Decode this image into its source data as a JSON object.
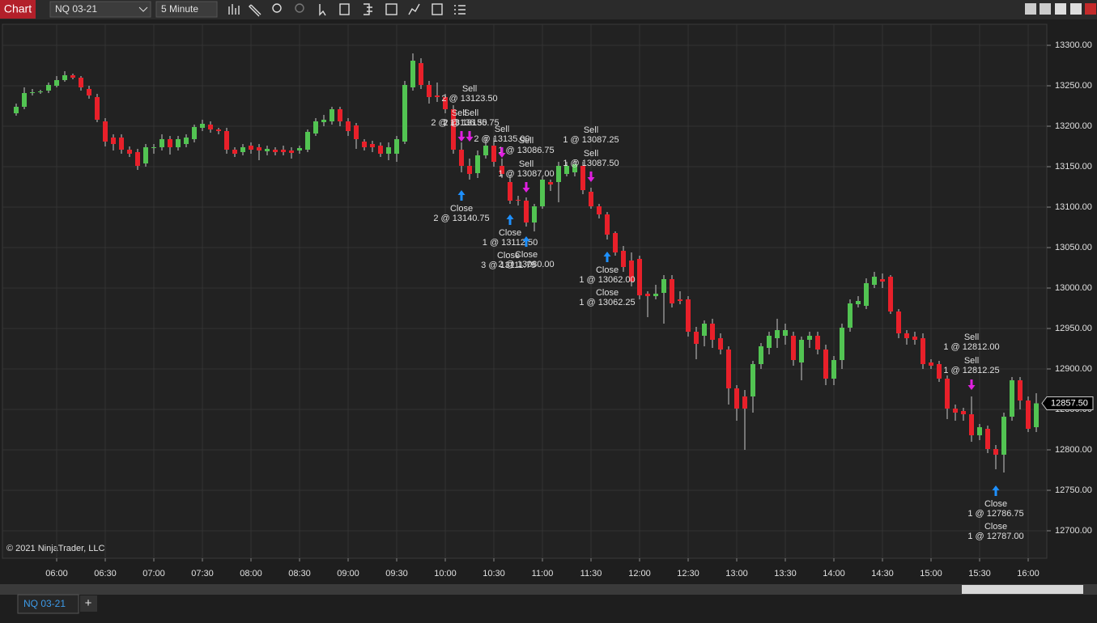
{
  "toolbar": {
    "app_label": "Chart",
    "instrument": "NQ 03-21",
    "interval": "5 Minute"
  },
  "tabs": {
    "active": "NQ 03-21",
    "add": "+"
  },
  "chart_data": {
    "type": "candlestick",
    "copyright": "© 2021 NinjaTrader, LLC",
    "x": [
      "05:35",
      "05:40",
      "05:45",
      "05:50",
      "05:55",
      "06:00",
      "06:05",
      "06:10",
      "06:15",
      "06:20",
      "06:25",
      "06:30",
      "06:35",
      "06:40",
      "06:45",
      "06:50",
      "06:55",
      "07:00",
      "07:05",
      "07:10",
      "07:15",
      "07:20",
      "07:25",
      "07:30",
      "07:35",
      "07:40",
      "07:45",
      "07:50",
      "07:55",
      "08:00",
      "08:05",
      "08:10",
      "08:15",
      "08:20",
      "08:25",
      "08:30",
      "08:35",
      "08:40",
      "08:45",
      "08:50",
      "08:55",
      "09:00",
      "09:05",
      "09:10",
      "09:15",
      "09:20",
      "09:25",
      "09:30",
      "09:35",
      "09:40",
      "09:45",
      "09:50",
      "09:55",
      "10:00",
      "10:05",
      "10:10",
      "10:15",
      "10:20",
      "10:25",
      "10:30",
      "10:35",
      "10:40",
      "10:45",
      "10:50",
      "10:55",
      "11:00",
      "11:05",
      "11:10",
      "11:15",
      "11:20",
      "11:25",
      "11:30",
      "11:35",
      "11:40",
      "11:45",
      "11:50",
      "11:55",
      "12:00",
      "12:05",
      "12:10",
      "12:15",
      "12:20",
      "12:25",
      "12:30",
      "12:35",
      "12:40",
      "12:45",
      "12:50",
      "12:55",
      "13:00",
      "13:05",
      "13:10",
      "13:15",
      "13:20",
      "13:25",
      "13:30",
      "13:35",
      "13:40",
      "13:45",
      "13:50",
      "13:55",
      "14:00",
      "14:05",
      "14:10",
      "14:15",
      "14:20",
      "14:25",
      "14:30",
      "14:35",
      "14:40",
      "14:45",
      "14:50",
      "14:55",
      "15:00",
      "15:05",
      "15:10",
      "15:15",
      "15:20",
      "15:25",
      "15:30",
      "15:35",
      "15:40",
      "15:45",
      "15:50",
      "15:55",
      "16:00",
      "16:05"
    ],
    "open": [
      13216,
      13224,
      13241,
      13242,
      13244,
      13250,
      13257,
      13263,
      13260,
      13246,
      13236,
      13206,
      13186,
      13186,
      13171,
      13168,
      13154,
      13173,
      13174,
      13184,
      13174,
      13178,
      13184,
      13198,
      13202,
      13196,
      13194,
      13171,
      13168,
      13176,
      13174,
      13169,
      13171,
      13171,
      13170,
      13170,
      13171,
      13191,
      13205,
      13206,
      13221,
      13206,
      13201,
      13181,
      13178,
      13176,
      13166,
      13166,
      13181,
      13248,
      13278,
      13251,
      13238,
      13236,
      13221,
      13171,
      13151,
      13142,
      13164,
      13176,
      13151,
      13131,
      13109,
      13108,
      13081,
      13101,
      13131,
      13131,
      13141,
      13143,
      13151,
      13119,
      13101,
      13091,
      13068,
      13046,
      13034,
      13036,
      12993,
      12990,
      12994,
      13011,
      12986,
      12986,
      12946,
      12941,
      12956,
      12938,
      12924,
      12876,
      12866,
      12866,
      12906,
      12926,
      12938,
      12941,
      12941,
      12908,
      12936,
      12941,
      12924,
      12888,
      12911,
      12951,
      12980,
      12978,
      13004,
      13011,
      13014,
      12971,
      12944,
      12940,
      12938,
      12908,
      12906,
      12888,
      12851,
      12848,
      12844,
      12818,
      12826,
      12801,
      12794,
      12841,
      12886,
      12861,
      12828
    ],
    "high": [
      13228,
      13248,
      13246,
      13245,
      13254,
      13262,
      13268,
      13265,
      13262,
      13250,
      13240,
      13210,
      13190,
      13190,
      13175,
      13172,
      13178,
      13178,
      13190,
      13188,
      13188,
      13190,
      13202,
      13208,
      13206,
      13198,
      13198,
      13174,
      13178,
      13180,
      13178,
      13176,
      13174,
      13176,
      13174,
      13176,
      13196,
      13210,
      13214,
      13224,
      13224,
      13210,
      13204,
      13184,
      13182,
      13180,
      13180,
      13188,
      13256,
      13290,
      13284,
      13256,
      13254,
      13240,
      13226,
      13180,
      13160,
      13170,
      13186,
      13186,
      13160,
      13140,
      13114,
      13112,
      13104,
      13138,
      13134,
      13156,
      13156,
      13158,
      13156,
      13124,
      13104,
      13094,
      13070,
      13052,
      13044,
      13040,
      12996,
      13004,
      13016,
      13016,
      12996,
      12990,
      12952,
      12960,
      12962,
      12944,
      12928,
      12880,
      12874,
      12910,
      12932,
      12946,
      12962,
      12956,
      12946,
      12940,
      12946,
      12946,
      12930,
      12916,
      12956,
      12986,
      12990,
      13012,
      13020,
      13018,
      13016,
      12974,
      12948,
      12946,
      12944,
      12912,
      12910,
      12892,
      12856,
      12852,
      12866,
      12832,
      12830,
      12806,
      12846,
      12890,
      12890,
      12866,
      12870
    ],
    "low": [
      13213,
      13221,
      13238,
      13240,
      13241,
      13248,
      13255,
      13258,
      13244,
      13234,
      13205,
      13175,
      13170,
      13166,
      13162,
      13146,
      13150,
      13166,
      13170,
      13165,
      13170,
      13174,
      13180,
      13194,
      13192,
      13190,
      13166,
      13162,
      13164,
      13166,
      13158,
      13164,
      13164,
      13164,
      13160,
      13166,
      13168,
      13188,
      13200,
      13202,
      13200,
      13188,
      13172,
      13170,
      13168,
      13162,
      13158,
      13156,
      13178,
      13244,
      13246,
      13228,
      13230,
      13216,
      13166,
      13143,
      13134,
      13136,
      13160,
      13150,
      13136,
      13104,
      13102,
      13076,
      13070,
      13098,
      13120,
      13106,
      13138,
      13138,
      13116,
      13098,
      13086,
      13060,
      13040,
      13020,
      13002,
      12986,
      12964,
      12986,
      12956,
      12976,
      12980,
      12940,
      12912,
      12928,
      12926,
      12918,
      12856,
      12836,
      12800,
      12846,
      12900,
      12918,
      12926,
      12930,
      12904,
      12886,
      12926,
      12918,
      12880,
      12880,
      12900,
      12946,
      12976,
      12974,
      13000,
      13000,
      12968,
      12938,
      12930,
      12930,
      12900,
      12900,
      12884,
      12838,
      12836,
      12836,
      12810,
      12812,
      12796,
      12776,
      12772,
      12836,
      12850,
      12822,
      12822
    ],
    "close": [
      13224,
      13241,
      13242,
      13243,
      13251,
      13257,
      13263,
      13260,
      13248,
      13238,
      13208,
      13181,
      13178,
      13171,
      13166,
      13151,
      13174,
      13174,
      13184,
      13174,
      13184,
      13186,
      13199,
      13203,
      13196,
      13194,
      13171,
      13166,
      13174,
      13171,
      13170,
      13172,
      13168,
      13168,
      13167,
      13173,
      13193,
      13206,
      13208,
      13221,
      13206,
      13194,
      13184,
      13174,
      13174,
      13166,
      13174,
      13184,
      13251,
      13281,
      13251,
      13236,
      13236,
      13221,
      13171,
      13151,
      13141,
      13164,
      13176,
      13156,
      13141,
      13108,
      13108,
      13081,
      13101,
      13134,
      13128,
      13151,
      13151,
      13153,
      13121,
      13101,
      13091,
      13066,
      13044,
      13026,
      13008,
      12991,
      12990,
      12993,
      13011,
      12981,
      12984,
      12946,
      12931,
      12956,
      12936,
      12924,
      12876,
      12851,
      12851,
      12906,
      12928,
      12941,
      12948,
      12948,
      12911,
      12936,
      12941,
      12924,
      12888,
      12911,
      12951,
      12981,
      12984,
      13006,
      13014,
      13008,
      12971,
      12944,
      12938,
      12936,
      12906,
      12904,
      12888,
      12851,
      12846,
      12844,
      12818,
      12828,
      12801,
      12794,
      12841,
      12886,
      12861,
      12826,
      12857.5
    ],
    "up_color": "#52c452",
    "down_color": "#e8202a",
    "wick_color": "#c8c8c8",
    "ylim": [
      12666,
      13326
    ],
    "yticks": [
      {
        "value": 12700,
        "label": "12700.00"
      },
      {
        "value": 12750,
        "label": "12750.00"
      },
      {
        "value": 12800,
        "label": "12800.00"
      },
      {
        "value": 12850,
        "label": "12850.00"
      },
      {
        "value": 12900,
        "label": "12900.00"
      },
      {
        "value": 12950,
        "label": "12950.00"
      },
      {
        "value": 13000,
        "label": "13000.00"
      },
      {
        "value": 13050,
        "label": "13050.00"
      },
      {
        "value": 13100,
        "label": "13100.00"
      },
      {
        "value": 13150,
        "label": "13150.00"
      },
      {
        "value": 13200,
        "label": "13200.00"
      },
      {
        "value": 13250,
        "label": "13250.00"
      },
      {
        "value": 13300,
        "label": "13300.00"
      }
    ],
    "xticks": [
      "06:00",
      "06:30",
      "07:00",
      "07:30",
      "08:00",
      "08:30",
      "09:00",
      "09:30",
      "10:00",
      "10:30",
      "11:00",
      "11:30",
      "12:00",
      "12:30",
      "13:00",
      "13:30",
      "14:00",
      "14:30",
      "15:00",
      "15:30",
      "16:00"
    ],
    "grid": true,
    "last_price": {
      "value": 12857.5,
      "label": "12857.50"
    },
    "trades": [
      {
        "action": "Sell",
        "text": "2 @ 13123.50"
      },
      {
        "action": "Sell",
        "text": "2 @ 13136.50"
      },
      {
        "action": "Sell",
        "text": "2 @ 13135.75"
      },
      {
        "action": "Sell",
        "text": "2 @ 13135.00"
      },
      {
        "action": "Sell",
        "text": "1 @ 13086.75"
      },
      {
        "action": "Sell",
        "text": "1 @ 13087.00"
      },
      {
        "action": "Sell",
        "text": "1 @ 13087.25"
      },
      {
        "action": "Sell",
        "text": "1 @ 13087.50"
      },
      {
        "action": "Close",
        "text": "2 @ 13140.75"
      },
      {
        "action": "Close",
        "text": "1 @ 13112.50"
      },
      {
        "action": "Close",
        "text": "3 @ 13111.75"
      },
      {
        "action": "Close",
        "text": "2 @ 13080.00"
      },
      {
        "action": "Close",
        "text": "1 @ 13062.00"
      },
      {
        "action": "Close",
        "text": "1 @ 13062.25"
      },
      {
        "action": "Sell",
        "text": "1 @ 12812.00"
      },
      {
        "action": "Sell",
        "text": "1 @ 12812.25"
      },
      {
        "action": "Close",
        "text": "1 @ 12786.75"
      },
      {
        "action": "Close",
        "text": "1 @ 12787.00"
      }
    ]
  }
}
